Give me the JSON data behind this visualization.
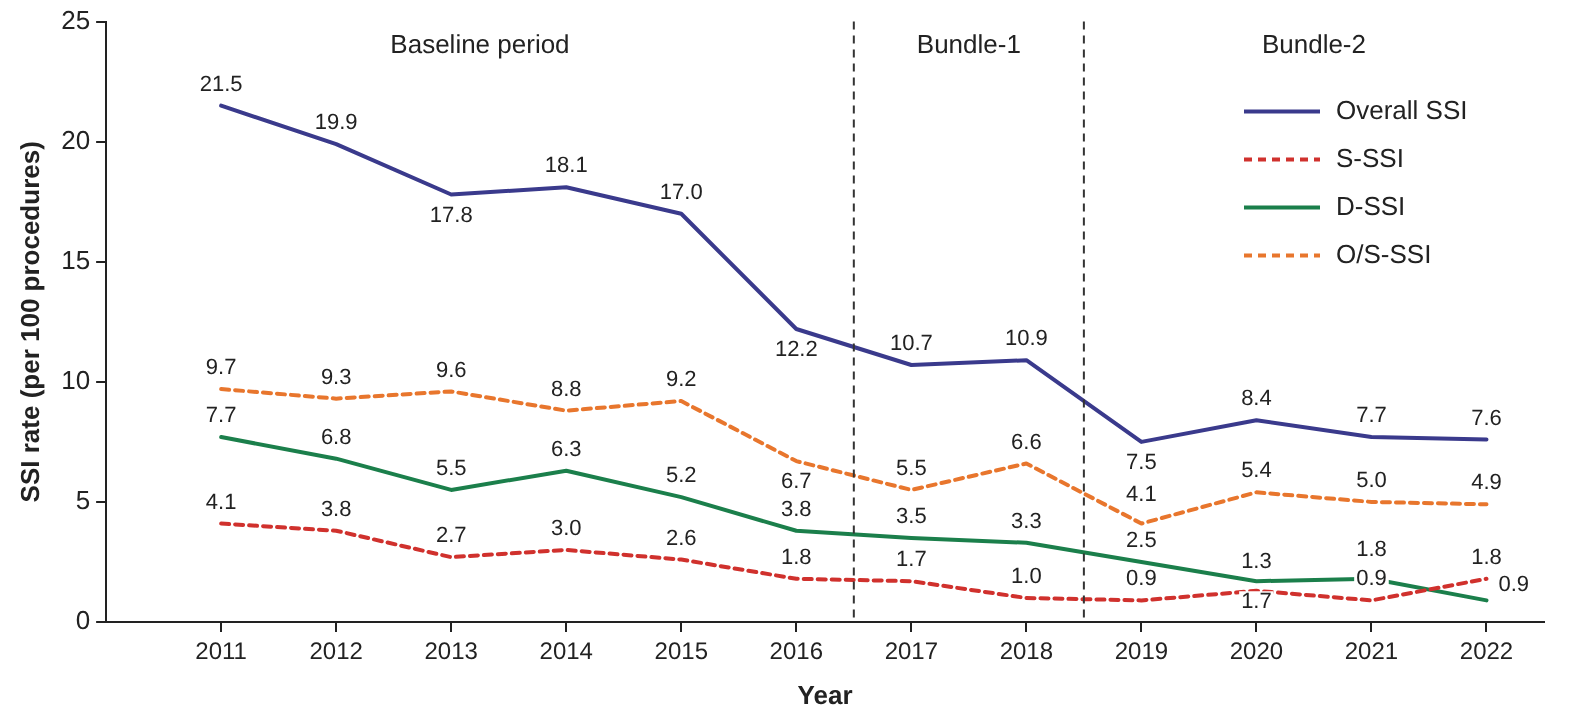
{
  "chart_data": {
    "type": "line",
    "xlabel": "Year",
    "ylabel": "SSI rate (per 100 procedures)",
    "x": [
      2011,
      2012,
      2013,
      2014,
      2015,
      2016,
      2017,
      2018,
      2019,
      2020,
      2021,
      2022
    ],
    "xlim": [
      2010,
      2022.5
    ],
    "xticks": [
      2011,
      2012,
      2013,
      2014,
      2015,
      2016,
      2017,
      2018,
      2019,
      2020,
      2021,
      2022
    ],
    "ylim": [
      0,
      25
    ],
    "yticks": [
      0,
      5,
      10,
      15,
      20,
      25
    ],
    "series": [
      {
        "name": "Overall SSI",
        "color": "#3a3a8c",
        "line_style": "solid",
        "values": [
          21.5,
          19.9,
          17.8,
          18.1,
          17.0,
          12.2,
          10.7,
          10.9,
          7.5,
          8.4,
          7.7,
          7.6
        ],
        "value_labels": [
          "21.5",
          "19.9",
          "17.8",
          "18.1",
          "17.0",
          "12.2",
          "10.7",
          "10.9",
          "7.5",
          "8.4",
          "7.7",
          "7.6"
        ]
      },
      {
        "name": "S-SSI",
        "color": "#d0312d",
        "line_style": "dashed",
        "values": [
          4.1,
          3.8,
          2.7,
          3.0,
          2.6,
          1.8,
          1.7,
          1.0,
          0.9,
          1.3,
          0.9,
          1.8
        ],
        "value_labels": [
          "4.1",
          "3.8",
          "2.7",
          "3.0",
          "2.6",
          "1.8",
          "1.7",
          "1.0",
          "0.9",
          "1.3",
          "0.9",
          "1.8"
        ]
      },
      {
        "name": "D-SSI",
        "color": "#1b7f4b",
        "line_style": "solid",
        "values": [
          7.7,
          6.8,
          5.5,
          6.3,
          5.2,
          3.8,
          3.5,
          3.3,
          2.5,
          1.7,
          1.8,
          0.9
        ],
        "value_labels": [
          "7.7",
          "6.8",
          "5.5",
          "6.3",
          "5.2",
          "3.8",
          "3.5",
          "3.3",
          "2.5",
          "1.7",
          "1.8",
          "0.9"
        ]
      },
      {
        "name": "O/S-SSI",
        "color": "#e8762d",
        "line_style": "dashed",
        "values": [
          9.7,
          9.3,
          9.6,
          8.8,
          9.2,
          6.7,
          5.5,
          6.6,
          4.1,
          5.4,
          5.0,
          4.9
        ],
        "value_labels": [
          "9.7",
          "9.3",
          "9.6",
          "8.8",
          "9.2",
          "6.7",
          "5.5",
          "6.6",
          "4.1",
          "5.4",
          "5.0",
          "4.9"
        ]
      }
    ],
    "ref_lines": [
      {
        "axis": "x",
        "value": 2016.5,
        "color": "#333333",
        "line_style": "dashed"
      },
      {
        "axis": "x",
        "value": 2018.5,
        "color": "#333333",
        "line_style": "dashed"
      }
    ],
    "annotations": [
      "Baseline period",
      "Bundle-1",
      "Bundle-2"
    ],
    "marker": "none",
    "grid": false,
    "legend": "top right"
  }
}
